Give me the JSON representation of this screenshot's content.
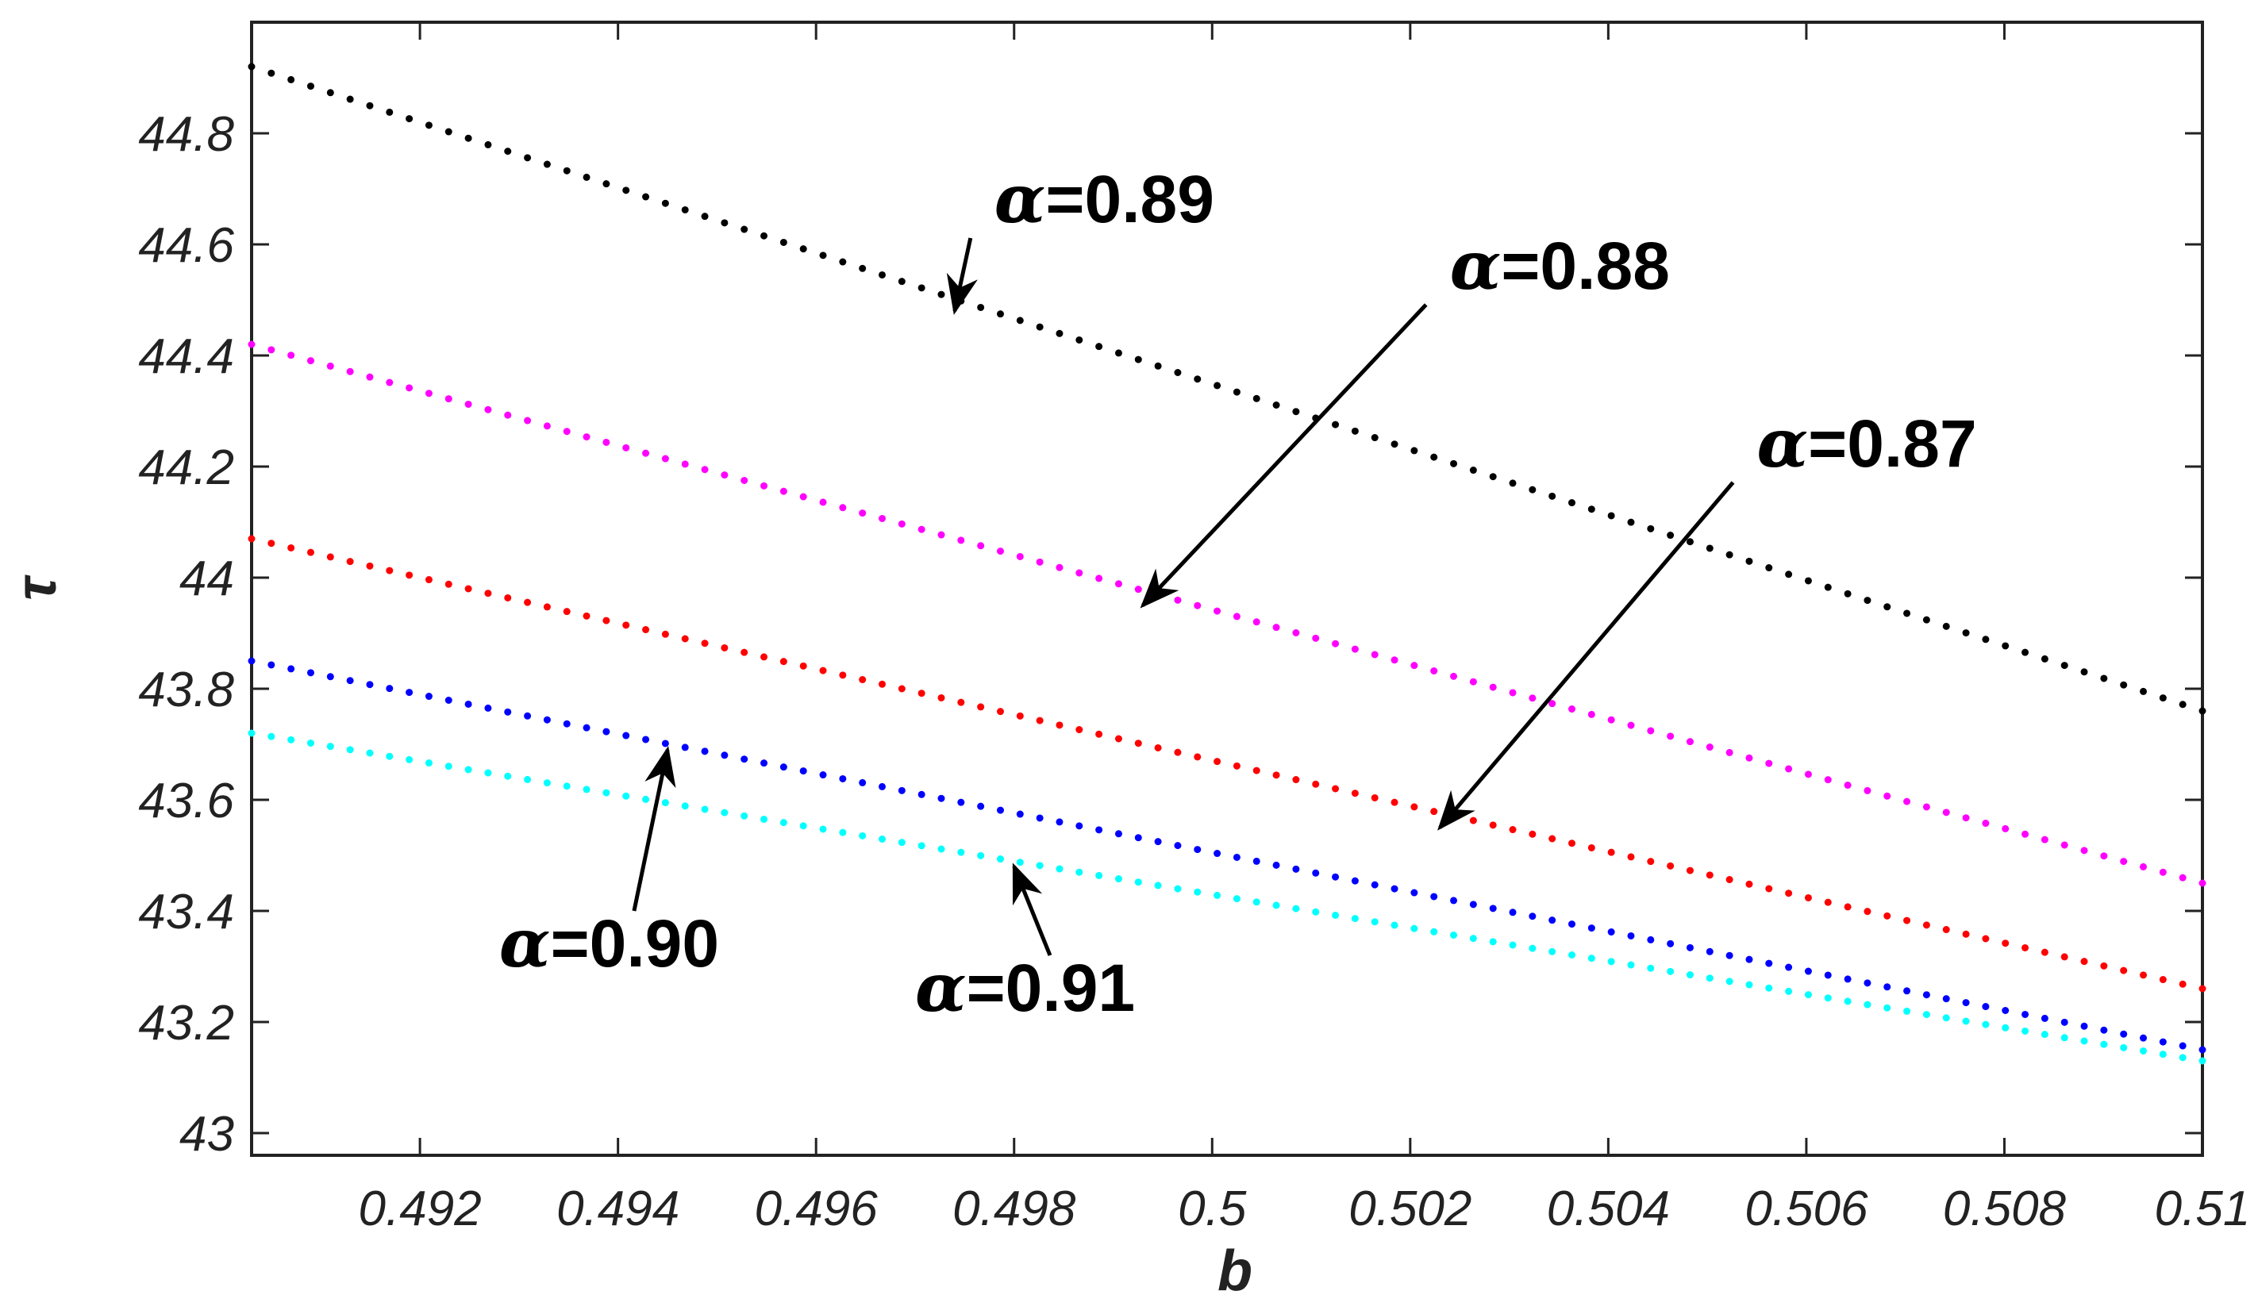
{
  "chart_data": {
    "type": "scatter",
    "xlabel": "b",
    "ylabel": "τ",
    "xlim": [
      0.4903,
      0.51
    ],
    "ylim": [
      42.96,
      45.0
    ],
    "x_ticks": [
      0.492,
      0.494,
      0.496,
      0.498,
      0.5,
      0.502,
      0.504,
      0.506,
      0.508,
      0.51
    ],
    "x_tick_labels": [
      "0.492",
      "0.494",
      "0.496",
      "0.498",
      "0.5",
      "0.502",
      "0.504",
      "0.506",
      "0.508",
      "0.51"
    ],
    "y_ticks": [
      43,
      43.2,
      43.4,
      43.6,
      43.8,
      44,
      44.2,
      44.4,
      44.6,
      44.8
    ],
    "y_tick_labels": [
      "43",
      "43.2",
      "43.4",
      "43.6",
      "43.8",
      "44",
      "44.2",
      "44.4",
      "44.6",
      "44.8"
    ],
    "grid": false,
    "marker": "dots",
    "points_per_series": 100,
    "series": [
      {
        "name": "α=0.89",
        "color": "#000000",
        "x": [
          0.4903,
          0.51
        ],
        "y": [
          44.92,
          43.76
        ]
      },
      {
        "name": "α=0.88",
        "color": "#ff00ff",
        "x": [
          0.4903,
          0.51
        ],
        "y": [
          44.42,
          43.45
        ]
      },
      {
        "name": "α=0.87",
        "color": "#ff0000",
        "x": [
          0.4903,
          0.51
        ],
        "y": [
          44.07,
          43.26
        ]
      },
      {
        "name": "α=0.90",
        "color": "#0000ff",
        "x": [
          0.4903,
          0.51
        ],
        "y": [
          43.85,
          43.15
        ]
      },
      {
        "name": "α=0.91",
        "color": "#00ffff",
        "x": [
          0.4903,
          0.51
        ],
        "y": [
          43.72,
          43.13
        ]
      }
    ],
    "annotations": [
      {
        "greek": "α",
        "text": "=0.89",
        "point": [
          0.4974,
          44.48
        ],
        "text_at": [
          0.4978,
          44.64
        ]
      },
      {
        "greek": "α",
        "text": "=0.88",
        "point": [
          0.4993,
          43.95
        ],
        "text_at": [
          0.5024,
          44.52
        ]
      },
      {
        "greek": "α",
        "text": "=0.87",
        "point": [
          0.5023,
          43.55
        ],
        "text_at": [
          0.5055,
          44.2
        ]
      },
      {
        "greek": "α",
        "text": "=0.90",
        "point": [
          0.4945,
          43.69
        ],
        "text_at": [
          0.4928,
          43.3
        ]
      },
      {
        "greek": "α",
        "text": "=0.91",
        "point": [
          0.498,
          43.48
        ],
        "text_at": [
          0.497,
          43.22
        ]
      }
    ]
  }
}
